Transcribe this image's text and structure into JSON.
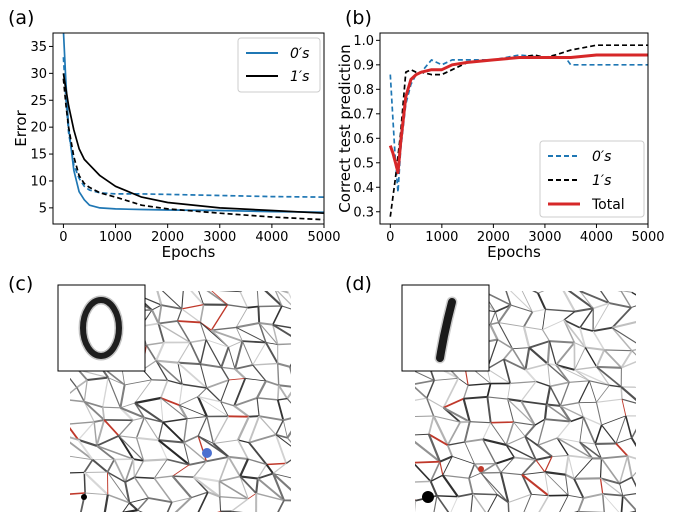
{
  "panels": {
    "a": "(a)",
    "b": "(b)",
    "c": "(c)",
    "d": "(d)"
  },
  "colors": {
    "blue": "#1f77b4",
    "black": "#000000",
    "red": "#d62728",
    "node_blue": "#4a6fd0",
    "network_gray": "#666666"
  },
  "chart_data": [
    {
      "type": "line",
      "panel": "(a)",
      "xlabel": "Epochs",
      "ylabel": "Error",
      "xlim": [
        -200,
        5000
      ],
      "ylim": [
        2,
        37.5
      ],
      "xticks": [
        0,
        1000,
        2000,
        3000,
        4000,
        5000
      ],
      "yticks": [
        5,
        10,
        15,
        20,
        25,
        30,
        35
      ],
      "legend": {
        "placement": "top-right",
        "entries": [
          "0′s",
          "1′s"
        ]
      },
      "series": [
        {
          "name": "0′s",
          "color": "#1f77b4",
          "style": "solid",
          "x": [
            0,
            50,
            100,
            200,
            300,
            400,
            500,
            700,
            1000,
            1500,
            2000,
            3000,
            4000,
            5000
          ],
          "y": [
            38,
            28,
            20,
            12,
            8,
            6.5,
            5.5,
            5.0,
            4.8,
            4.7,
            4.6,
            4.5,
            4.3,
            4.2
          ]
        },
        {
          "name": "0′s",
          "color": "#1f77b4",
          "style": "dashed",
          "x": [
            0,
            50,
            100,
            200,
            300,
            400,
            500,
            700,
            1000,
            1500,
            2000,
            3000,
            4000,
            5000
          ],
          "y": [
            33,
            25,
            19,
            13,
            10.5,
            9,
            8.3,
            7.8,
            7.6,
            7.6,
            7.5,
            7.3,
            7.1,
            7.0
          ]
        },
        {
          "name": "1′s",
          "color": "#000000",
          "style": "solid",
          "x": [
            0,
            50,
            100,
            200,
            300,
            400,
            500,
            700,
            1000,
            1500,
            2000,
            3000,
            4000,
            5000
          ],
          "y": [
            30,
            27,
            24,
            19.5,
            16,
            14,
            13,
            11,
            9,
            7,
            6,
            5,
            4.5,
            4.0
          ]
        },
        {
          "name": "1′s",
          "color": "#000000",
          "style": "dashed",
          "x": [
            0,
            50,
            100,
            200,
            300,
            400,
            500,
            700,
            1000,
            1500,
            2000,
            3000,
            4000,
            5000
          ],
          "y": [
            29,
            24,
            20,
            14.5,
            11,
            9.5,
            8.8,
            7.8,
            7.0,
            5.5,
            4.8,
            4.0,
            3.3,
            2.8
          ]
        }
      ]
    },
    {
      "type": "line",
      "panel": "(b)",
      "xlabel": "Epochs",
      "ylabel": "Correct test prediction",
      "xlim": [
        -200,
        5000
      ],
      "ylim": [
        0.25,
        1.03
      ],
      "xticks": [
        0,
        1000,
        2000,
        3000,
        4000,
        5000
      ],
      "yticks": [
        "0.3",
        "0.4",
        "0.5",
        "0.6",
        "0.7",
        "0.8",
        "0.9",
        "1.0"
      ],
      "legend": {
        "placement": "bottom-right",
        "entries": [
          "0′s",
          "1′s",
          "Total"
        ]
      },
      "series": [
        {
          "name": "0′s",
          "color": "#1f77b4",
          "style": "dashed",
          "x": [
            0,
            100,
            150,
            200,
            300,
            400,
            500,
            600,
            800,
            1000,
            1200,
            1500,
            2000,
            2500,
            3000,
            3400,
            3500,
            4000,
            4500,
            5000
          ],
          "y": [
            0.86,
            0.5,
            0.38,
            0.55,
            0.74,
            0.82,
            0.86,
            0.87,
            0.92,
            0.9,
            0.92,
            0.92,
            0.92,
            0.94,
            0.93,
            0.93,
            0.9,
            0.9,
            0.9,
            0.9
          ]
        },
        {
          "name": "1′s",
          "color": "#000000",
          "style": "dashed",
          "x": [
            0,
            100,
            200,
            300,
            400,
            500,
            600,
            800,
            1000,
            1200,
            1500,
            2000,
            2500,
            2800,
            3000,
            3200,
            3500,
            4000,
            4500,
            5000
          ],
          "y": [
            0.28,
            0.44,
            0.62,
            0.87,
            0.88,
            0.87,
            0.87,
            0.86,
            0.86,
            0.88,
            0.91,
            0.92,
            0.93,
            0.94,
            0.93,
            0.94,
            0.96,
            0.98,
            0.98,
            0.98
          ]
        },
        {
          "name": "Total",
          "color": "#d62728",
          "style": "solid",
          "x": [
            0,
            50,
            100,
            150,
            200,
            300,
            400,
            500,
            600,
            800,
            1000,
            1200,
            1500,
            2000,
            2500,
            3000,
            3500,
            4000,
            4500,
            5000
          ],
          "y": [
            0.57,
            0.54,
            0.5,
            0.46,
            0.58,
            0.77,
            0.84,
            0.86,
            0.87,
            0.88,
            0.88,
            0.9,
            0.91,
            0.92,
            0.93,
            0.93,
            0.93,
            0.94,
            0.94,
            0.94
          ]
        }
      ]
    }
  ]
}
